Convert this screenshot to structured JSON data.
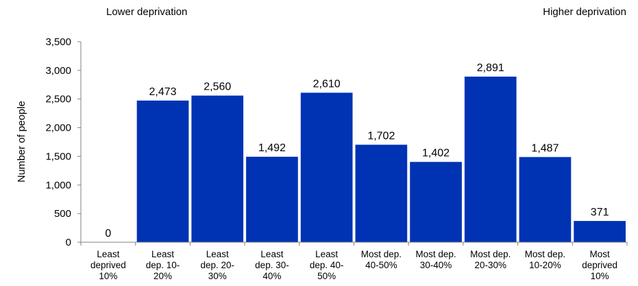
{
  "chart_data": {
    "type": "bar",
    "categories": [
      "Least deprived 10%",
      "Least dep. 10-20%",
      "Least dep. 20-30%",
      "Least dep. 30-40%",
      "Least dep. 40-50%",
      "Most dep. 40-50%",
      "Most dep. 30-40%",
      "Most dep. 20-30%",
      "Most dep. 10-20%",
      "Most deprived 10%"
    ],
    "category_lines": [
      [
        "Least",
        "deprived",
        "10%"
      ],
      [
        "Least",
        "dep. 10-",
        "20%"
      ],
      [
        "Least",
        "dep. 20-",
        "30%"
      ],
      [
        "Least",
        "dep. 30-",
        "40%"
      ],
      [
        "Least",
        "dep. 40-",
        "50%"
      ],
      [
        "Most dep.",
        "40-50%"
      ],
      [
        "Most dep.",
        "30-40%"
      ],
      [
        "Most dep.",
        "20-30%"
      ],
      [
        "Most dep.",
        "10-20%"
      ],
      [
        "Most",
        "deprived",
        "10%"
      ]
    ],
    "values": [
      0,
      2473,
      2560,
      1492,
      2610,
      1702,
      1402,
      2891,
      1487,
      371
    ],
    "value_labels": [
      "0",
      "2,473",
      "2,560",
      "1,492",
      "2,610",
      "1,702",
      "1,402",
      "2,891",
      "1,487",
      "371"
    ],
    "ylabel": "Number of people",
    "xlabel": "",
    "ylim": [
      0,
      3500
    ],
    "yticks": [
      0,
      500,
      1000,
      1500,
      2000,
      2500,
      3000,
      3500
    ],
    "ytick_labels": [
      "0",
      "500",
      "1,000",
      "1,500",
      "2,000",
      "2,500",
      "3,000",
      "3,500"
    ],
    "annotations": {
      "left": "Lower deprivation",
      "right": "Higher deprivation"
    },
    "bar_color": "#0033B3",
    "grid": false
  }
}
